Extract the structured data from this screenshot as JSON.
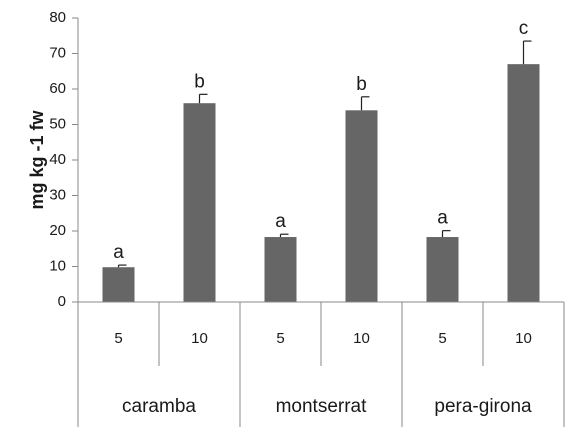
{
  "chart_data": {
    "type": "bar",
    "title": "",
    "xlabel": "",
    "ylabel": "mg kg -1 fw",
    "ylim": [
      0,
      80
    ],
    "yticks": [
      0,
      10,
      20,
      30,
      40,
      50,
      60,
      70,
      80
    ],
    "grid": false,
    "legend": "none",
    "bar_color": "#666666",
    "groups": [
      {
        "name": "caramba",
        "bars": [
          {
            "label": "5",
            "value": 9.8,
            "error": 0.6,
            "sig": "a"
          },
          {
            "label": "10",
            "value": 56.0,
            "error": 2.5,
            "sig": "b"
          }
        ]
      },
      {
        "name": "montserrat",
        "bars": [
          {
            "label": "5",
            "value": 18.3,
            "error": 0.8,
            "sig": "a"
          },
          {
            "label": "10",
            "value": 54.0,
            "error": 3.8,
            "sig": "b"
          }
        ]
      },
      {
        "name": "pera-girona",
        "bars": [
          {
            "label": "5",
            "value": 18.3,
            "error": 1.8,
            "sig": "a"
          },
          {
            "label": "10",
            "value": 67.0,
            "error": 6.5,
            "sig": "c"
          }
        ]
      }
    ]
  }
}
